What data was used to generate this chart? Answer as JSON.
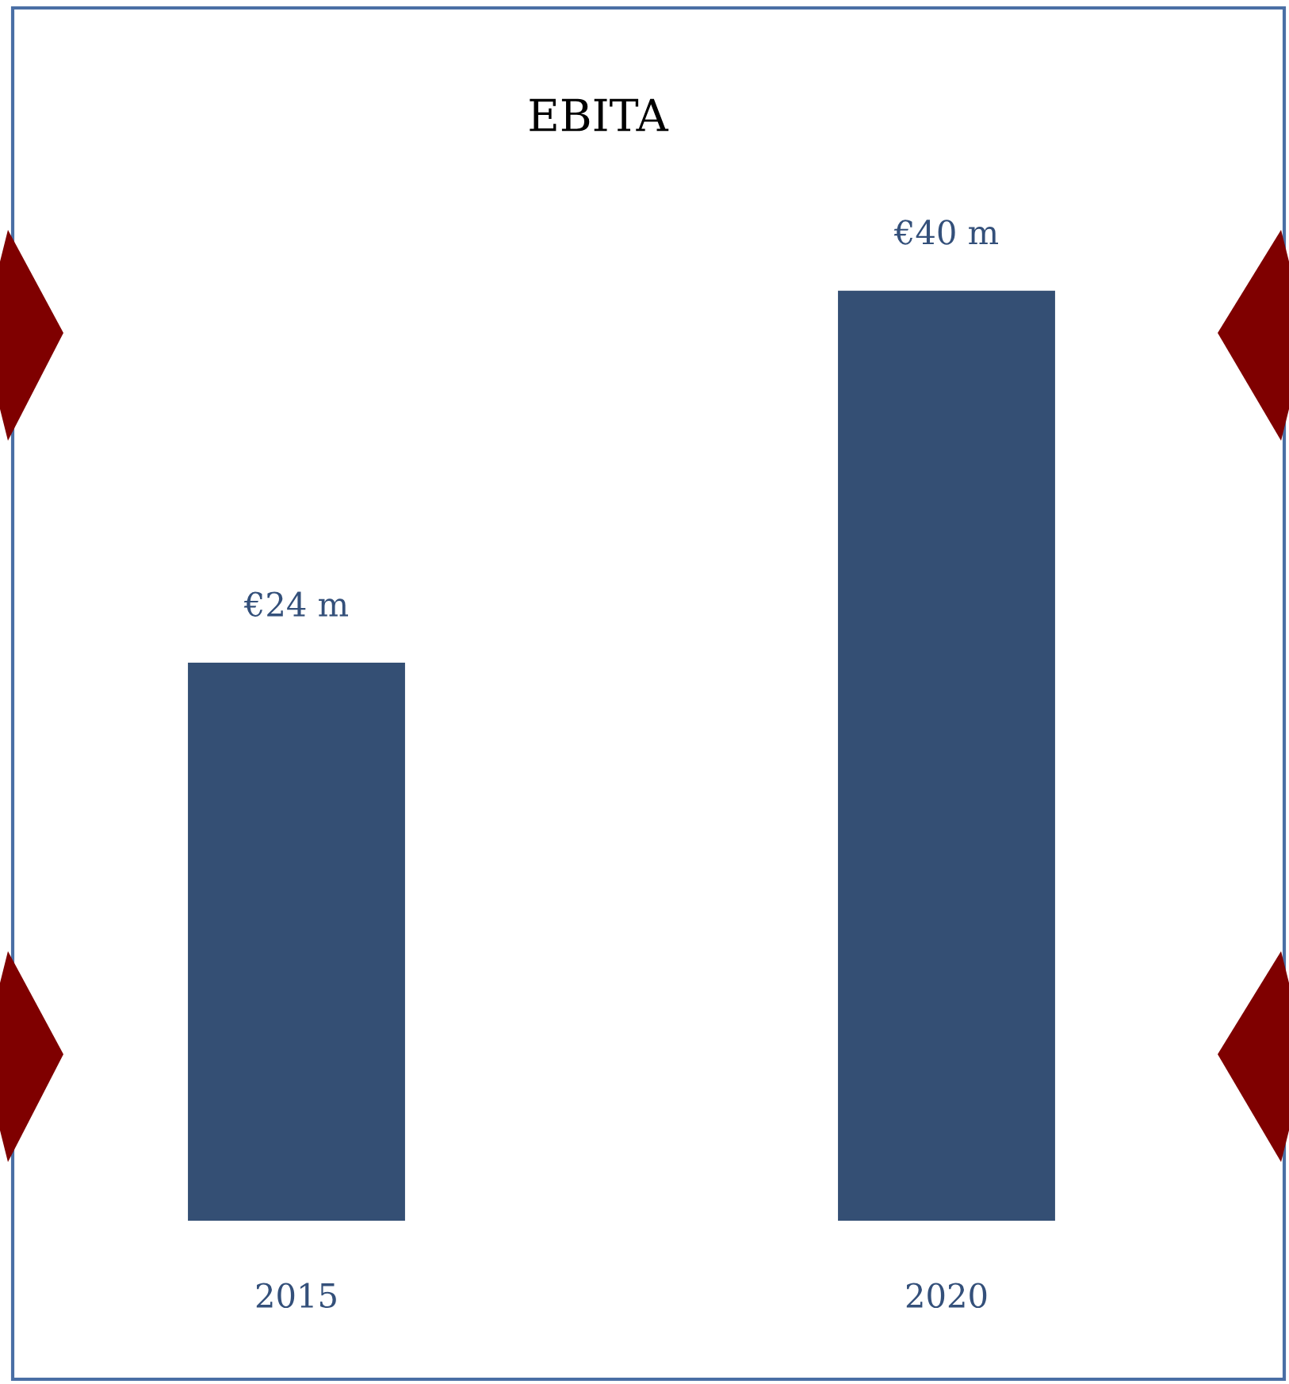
{
  "chart_data": {
    "type": "bar",
    "title": "EBITA",
    "categories": [
      "2015",
      "2020"
    ],
    "values": [
      24,
      40
    ],
    "value_labels": [
      "€24 m",
      "€40 m"
    ],
    "color": "#344f74",
    "grid": false,
    "legend": false
  }
}
